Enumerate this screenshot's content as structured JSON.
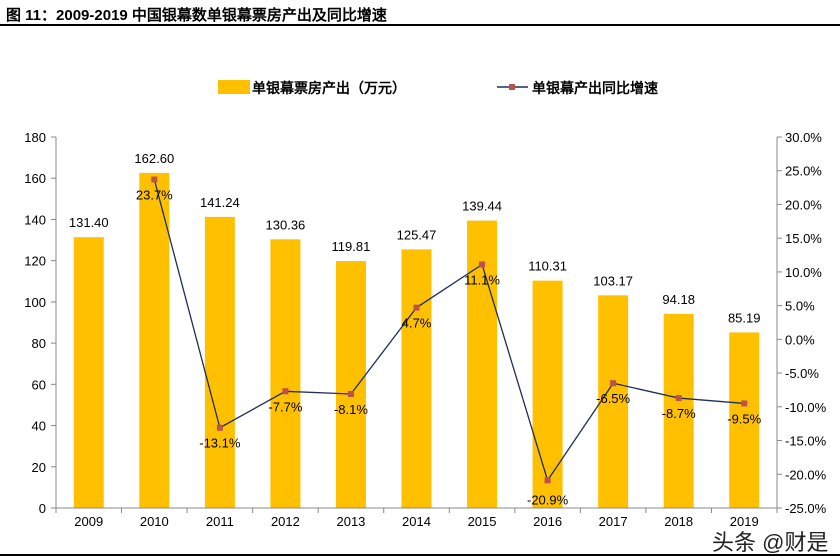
{
  "title": "图 11：2009-2019 中国银幕数单银幕票房产出及同比增速",
  "watermark": "头条 @财是",
  "chart_data": {
    "type": "bar+line",
    "categories": [
      "2009",
      "2010",
      "2011",
      "2012",
      "2013",
      "2014",
      "2015",
      "2016",
      "2017",
      "2018",
      "2019"
    ],
    "series": [
      {
        "name": "单银幕票房产出（万元）",
        "type": "bar",
        "axis": "left",
        "color": "#FFC000",
        "values": [
          131.4,
          162.6,
          141.24,
          130.36,
          119.81,
          125.47,
          139.44,
          110.31,
          103.17,
          94.18,
          85.19
        ],
        "labels": [
          "131.40",
          "162.60",
          "141.24",
          "130.36",
          "119.81",
          "125.47",
          "139.44",
          "110.31",
          "103.17",
          "94.18",
          "85.19"
        ]
      },
      {
        "name": "单银幕产出同比增速",
        "type": "line",
        "axis": "right",
        "color": "#1F2D5A",
        "marker_color": "#C0504D",
        "values": [
          null,
          23.7,
          -13.1,
          -7.7,
          -8.1,
          4.7,
          11.1,
          -20.9,
          -6.5,
          -8.7,
          -9.5
        ],
        "labels": [
          "",
          "23.7%",
          "-13.1%",
          "-7.7%",
          "-8.1%",
          "4.7%",
          "11.1%",
          "-20.9%",
          "-6.5%",
          "-8.7%",
          "-9.5%"
        ]
      }
    ],
    "y_left": {
      "min": 0,
      "max": 180,
      "ticks": [
        "0",
        "20",
        "40",
        "60",
        "80",
        "100",
        "120",
        "140",
        "160",
        "180"
      ]
    },
    "y_right": {
      "min": -25,
      "max": 30,
      "ticks": [
        "-25.0%",
        "-20.0%",
        "-15.0%",
        "-10.0%",
        "-5.0%",
        "0.0%",
        "5.0%",
        "10.0%",
        "15.0%",
        "20.0%",
        "25.0%",
        "30.0%"
      ]
    },
    "legend": "top",
    "grid": false
  }
}
